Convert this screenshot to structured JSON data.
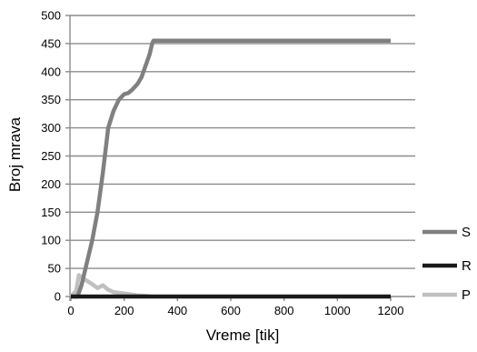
{
  "chart_data": {
    "type": "line",
    "xlabel": "Vreme [tik]",
    "ylabel": "Broj mrava",
    "xlim": [
      0,
      1200
    ],
    "ylim": [
      0,
      500
    ],
    "x_ticks": [
      0,
      200,
      400,
      600,
      800,
      1000,
      1200
    ],
    "y_ticks": [
      0,
      50,
      100,
      150,
      200,
      250,
      300,
      350,
      400,
      450,
      500
    ],
    "grid": "horizontal",
    "legend_position": "right",
    "series": [
      {
        "name": "S",
        "color": "#808080",
        "points": [
          [
            0,
            0
          ],
          [
            25,
            0
          ],
          [
            40,
            20
          ],
          [
            60,
            60
          ],
          [
            80,
            100
          ],
          [
            100,
            150
          ],
          [
            120,
            220
          ],
          [
            140,
            300
          ],
          [
            160,
            330
          ],
          [
            180,
            350
          ],
          [
            200,
            360
          ],
          [
            215,
            362
          ],
          [
            230,
            368
          ],
          [
            250,
            378
          ],
          [
            265,
            390
          ],
          [
            280,
            410
          ],
          [
            295,
            430
          ],
          [
            305,
            450
          ],
          [
            310,
            455
          ],
          [
            1200,
            455
          ]
        ]
      },
      {
        "name": "R",
        "color": "#1a1a1a",
        "points": [
          [
            0,
            0
          ],
          [
            1200,
            0
          ]
        ]
      },
      {
        "name": "P",
        "color": "#c0c0c0",
        "points": [
          [
            0,
            0
          ],
          [
            20,
            10
          ],
          [
            30,
            38
          ],
          [
            45,
            32
          ],
          [
            60,
            28
          ],
          [
            80,
            22
          ],
          [
            100,
            15
          ],
          [
            120,
            20
          ],
          [
            140,
            12
          ],
          [
            160,
            8
          ],
          [
            190,
            6
          ],
          [
            220,
            4
          ],
          [
            250,
            2
          ],
          [
            280,
            1
          ],
          [
            300,
            0
          ]
        ]
      }
    ]
  }
}
